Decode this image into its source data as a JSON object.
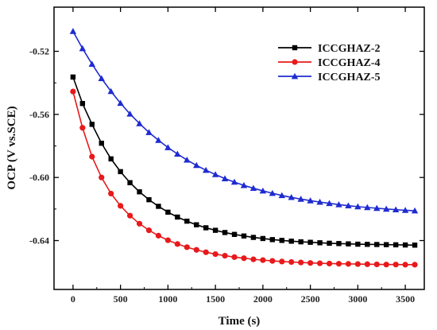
{
  "chart_data": {
    "type": "line",
    "title": "",
    "xlabel": "Time (s)",
    "ylabel": "OCP (V vs.SCE)",
    "xlim": [
      -200,
      3700
    ],
    "ylim": [
      -0.671,
      -0.492
    ],
    "x_ticks": [
      0,
      500,
      1000,
      1500,
      2000,
      2500,
      3000,
      3500
    ],
    "y_ticks": [
      -0.52,
      -0.56,
      -0.6,
      -0.64
    ],
    "x_tick_labels": [
      "0",
      "500",
      "1000",
      "1500",
      "2000",
      "2500",
      "3000",
      "3500"
    ],
    "y_tick_labels": [
      "-0.52",
      "-0.56",
      "-0.60",
      "-0.64"
    ],
    "legend_position": "top-right",
    "grid": false,
    "series": [
      {
        "name": "ICCGHAZ-2",
        "color": "#000000",
        "marker": "square",
        "x": [
          0,
          100,
          200,
          300,
          400,
          500,
          600,
          700,
          800,
          900,
          1000,
          1100,
          1200,
          1300,
          1400,
          1500,
          1600,
          1700,
          1800,
          1900,
          2000,
          2100,
          2200,
          2300,
          2400,
          2500,
          2600,
          2700,
          2800,
          2900,
          3000,
          3100,
          3200,
          3300,
          3400,
          3500,
          3600
        ],
        "values": [
          -0.5363,
          -0.5531,
          -0.5663,
          -0.5783,
          -0.5882,
          -0.5963,
          -0.6033,
          -0.6091,
          -0.6141,
          -0.6183,
          -0.622,
          -0.6251,
          -0.6277,
          -0.63,
          -0.6319,
          -0.6335,
          -0.6349,
          -0.6361,
          -0.6371,
          -0.638,
          -0.6387,
          -0.6394,
          -0.6399,
          -0.6404,
          -0.6408,
          -0.6411,
          -0.6414,
          -0.6417,
          -0.6419,
          -0.6421,
          -0.6423,
          -0.6424,
          -0.6425,
          -0.6426,
          -0.6427,
          -0.6428,
          -0.6429
        ]
      },
      {
        "name": "ICCGHAZ-4",
        "color": "#e8191b",
        "marker": "circle",
        "x": [
          0,
          100,
          200,
          300,
          400,
          500,
          600,
          700,
          800,
          900,
          1000,
          1100,
          1200,
          1300,
          1400,
          1500,
          1600,
          1700,
          1800,
          1900,
          2000,
          2100,
          2200,
          2300,
          2400,
          2500,
          2600,
          2700,
          2800,
          2900,
          3000,
          3100,
          3200,
          3300,
          3400,
          3500,
          3600
        ],
        "values": [
          -0.5455,
          -0.5685,
          -0.5868,
          -0.6,
          -0.6102,
          -0.618,
          -0.6242,
          -0.6293,
          -0.6335,
          -0.6369,
          -0.6398,
          -0.6422,
          -0.6442,
          -0.6459,
          -0.6474,
          -0.6486,
          -0.6496,
          -0.6505,
          -0.6512,
          -0.6519,
          -0.6524,
          -0.6529,
          -0.6533,
          -0.6536,
          -0.6539,
          -0.6542,
          -0.6544,
          -0.6546,
          -0.6547,
          -0.6548,
          -0.6549,
          -0.655,
          -0.6551,
          -0.6552,
          -0.6552,
          -0.6553,
          -0.6553
        ]
      },
      {
        "name": "ICCGHAZ-5",
        "color": "#1f2bd0",
        "marker": "triangle",
        "x": [
          0,
          100,
          200,
          300,
          400,
          500,
          600,
          700,
          800,
          900,
          1000,
          1100,
          1200,
          1300,
          1400,
          1500,
          1600,
          1700,
          1800,
          1900,
          2000,
          2100,
          2200,
          2300,
          2400,
          2500,
          2600,
          2700,
          2800,
          2900,
          3000,
          3100,
          3200,
          3300,
          3400,
          3500,
          3600
        ],
        "values": [
          -0.5073,
          -0.5182,
          -0.5281,
          -0.5372,
          -0.5454,
          -0.5529,
          -0.5597,
          -0.5658,
          -0.5714,
          -0.5764,
          -0.581,
          -0.5851,
          -0.5889,
          -0.5923,
          -0.5954,
          -0.5981,
          -0.6007,
          -0.6029,
          -0.605,
          -0.6068,
          -0.6085,
          -0.61,
          -0.6114,
          -0.6126,
          -0.6137,
          -0.6147,
          -0.6156,
          -0.6164,
          -0.6172,
          -0.6179,
          -0.6185,
          -0.619,
          -0.6195,
          -0.62,
          -0.6204,
          -0.6208,
          -0.6211
        ]
      }
    ]
  }
}
